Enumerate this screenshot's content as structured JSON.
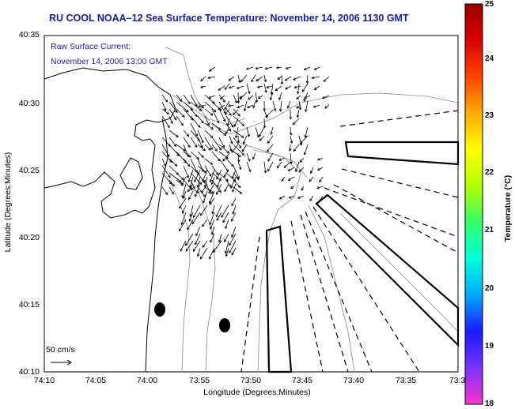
{
  "title": "RU COOL  NOAA–12  Sea Surface Temperature:  November 14, 2006 1130 GMT",
  "current_label": {
    "line1": "Raw Surface Current:",
    "line2": "November 14, 2006 13:00 GMT"
  },
  "axes": {
    "xlabel": "Longitude (Degrees:Minutes)",
    "ylabel": "Latitude (Degrees:Minutes)",
    "xticks": [
      "74:10",
      "74:05",
      "74:00",
      "73:55",
      "73:50",
      "73:45",
      "73:40",
      "73:35",
      "73:3"
    ],
    "yticks": [
      "40:35",
      "40:30",
      "40:25",
      "40:20",
      "40:15",
      "40:10"
    ]
  },
  "scale_label": "50 cm/s",
  "colorbar": {
    "label": "Temperature (°C)",
    "ticks": [
      "25",
      "24",
      "23",
      "22",
      "21",
      "20",
      "19",
      "18"
    ],
    "range": [
      18,
      25
    ],
    "colors": [
      "#ff33cc",
      "#7a33ff",
      "#1a1aff",
      "#00aaff",
      "#00ffe0",
      "#33ff66",
      "#b3ff00",
      "#ffff00",
      "#ffaa00",
      "#ff4400",
      "#dd0000",
      "#990000"
    ]
  }
}
